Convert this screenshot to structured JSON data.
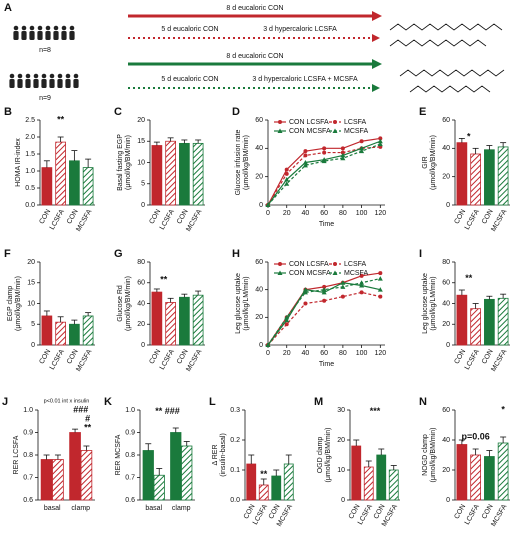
{
  "diagram": {
    "label": "A",
    "groups": [
      {
        "n": "n=8",
        "solid": "8 d eucaloric CON",
        "dotted": [
          "5 d eucaloric CON",
          "3 d hypercaloric LCSFA"
        ],
        "color": "#c1272d"
      },
      {
        "n": "n=9",
        "solid": "8 d eucaloric CON",
        "dotted": [
          "5 d eucaloric CON",
          "3 d hypercaloric LCSFA + MCSFA"
        ],
        "color": "#1a7a3c"
      }
    ]
  },
  "chart_data": [
    {
      "label": "B",
      "type": "bar",
      "y_label": [
        "HOMA IR-index"
      ],
      "categories": [
        "CON",
        "LCSFA",
        "CON",
        "MCSFA"
      ],
      "values": [
        1.1,
        1.85,
        1.3,
        1.1
      ],
      "errors": [
        0.2,
        0.15,
        0.3,
        0.25
      ],
      "colors": [
        "#c1272d",
        "#c1272d",
        "#1a7a3c",
        "#1a7a3c"
      ],
      "hatched": [
        false,
        true,
        false,
        true
      ],
      "ylim": [
        0,
        2.5
      ],
      "yticks": [
        {
          "value": 0,
          "label": "0.0"
        },
        0.5,
        {
          "value": 1,
          "label": "1.0"
        },
        1.5,
        {
          "value": 2,
          "label": "2.0"
        },
        2.5
      ],
      "annotations": [
        "**"
      ]
    },
    {
      "label": "C",
      "type": "bar",
      "y_label": [
        "Basal fasting EGP",
        "(μmol/kg/BM/min)"
      ],
      "categories": [
        "CON",
        "LCSFA",
        "CON",
        "MCSFA"
      ],
      "values": [
        14,
        15,
        14.5,
        14.5
      ],
      "errors": [
        0.8,
        0.8,
        0.8,
        0.8
      ],
      "colors": [
        "#c1272d",
        "#c1272d",
        "#1a7a3c",
        "#1a7a3c"
      ],
      "hatched": [
        false,
        true,
        false,
        true
      ],
      "ylim": [
        0,
        20
      ],
      "yticks": [
        0,
        5,
        10,
        15,
        20
      ],
      "annotations": []
    },
    {
      "label": "D",
      "type": "line",
      "y_label": [
        "Glucose infusion rate",
        "(μmol/kg/BM/min)"
      ],
      "x_label": "Time",
      "x": [
        0,
        20,
        40,
        60,
        80,
        100,
        120
      ],
      "xlim": [
        0,
        125
      ],
      "xticks": [
        0,
        20,
        40,
        60,
        80,
        100,
        120
      ],
      "ylim": [
        0,
        60
      ],
      "yticks": [
        0,
        20,
        40,
        60
      ],
      "legend": "top-left",
      "series": [
        {
          "name": "CON LCSFA",
          "color": "#c1272d",
          "dashed": false,
          "marker": "circle",
          "values": [
            0,
            25,
            38,
            40,
            40,
            45,
            47
          ]
        },
        {
          "name": "LCSFA",
          "color": "#c1272d",
          "dashed": true,
          "marker": "circle",
          "values": [
            0,
            22,
            35,
            37,
            37,
            40,
            41
          ]
        },
        {
          "name": "CON MCSFA",
          "color": "#1a7a3c",
          "dashed": false,
          "marker": "triangle",
          "values": [
            0,
            18,
            30,
            32,
            35,
            40,
            45
          ]
        },
        {
          "name": "MCSFA",
          "color": "#1a7a3c",
          "dashed": true,
          "marker": "triangle",
          "values": [
            0,
            15,
            28,
            31,
            33,
            38,
            43
          ]
        }
      ],
      "annotations": []
    },
    {
      "label": "E",
      "type": "bar",
      "y_label": [
        "GIR",
        "(μmol/kg/BM/min)"
      ],
      "categories": [
        "CON",
        "LCSFA",
        "CON",
        "MCSFA"
      ],
      "values": [
        44,
        36,
        39,
        41
      ],
      "errors": [
        3,
        4,
        3,
        3
      ],
      "colors": [
        "#c1272d",
        "#c1272d",
        "#1a7a3c",
        "#1a7a3c"
      ],
      "hatched": [
        false,
        true,
        false,
        true
      ],
      "ylim": [
        0,
        60
      ],
      "yticks": [
        0,
        20,
        40,
        60
      ],
      "annotations": [
        "*"
      ]
    },
    {
      "label": "F",
      "type": "bar",
      "y_label": [
        "EGP clamp",
        "(μmol/kg/BM/min)"
      ],
      "categories": [
        "CON",
        "LCSFA",
        "CON",
        "MCSFA"
      ],
      "values": [
        7,
        5.5,
        5,
        7
      ],
      "errors": [
        1.2,
        1.3,
        1,
        0.8
      ],
      "colors": [
        "#c1272d",
        "#c1272d",
        "#1a7a3c",
        "#1a7a3c"
      ],
      "hatched": [
        false,
        true,
        false,
        true
      ],
      "ylim": [
        0,
        20
      ],
      "yticks": [
        0,
        5,
        10,
        15,
        20
      ],
      "annotations": []
    },
    {
      "label": "G",
      "type": "bar",
      "y_label": [
        "Glucose Rd",
        "(μmol/kg/BM/min)"
      ],
      "categories": [
        "CON",
        "LCSFA",
        "CON",
        "MCSFA"
      ],
      "values": [
        51,
        41,
        46,
        48
      ],
      "errors": [
        3,
        4,
        3,
        4
      ],
      "colors": [
        "#c1272d",
        "#c1272d",
        "#1a7a3c",
        "#1a7a3c"
      ],
      "hatched": [
        false,
        true,
        false,
        true
      ],
      "ylim": [
        0,
        80
      ],
      "yticks": [
        0,
        20,
        40,
        60,
        80
      ],
      "annotations": [
        "**"
      ]
    },
    {
      "label": "H",
      "type": "line",
      "y_label": [
        "Leg glucose uptake",
        "(μmol/kg/LM/min)"
      ],
      "x_label": "Time",
      "x": [
        0,
        20,
        40,
        60,
        80,
        100,
        120
      ],
      "xlim": [
        0,
        125
      ],
      "xticks": [
        0,
        20,
        40,
        60,
        80,
        100,
        120
      ],
      "ylim": [
        0,
        60
      ],
      "yticks": [
        0,
        20,
        40,
        60
      ],
      "legend": "top-left",
      "series": [
        {
          "name": "CON LCSFA",
          "color": "#c1272d",
          "dashed": false,
          "marker": "circle",
          "values": [
            0,
            20,
            40,
            42,
            45,
            50,
            52
          ]
        },
        {
          "name": "LCSFA",
          "color": "#c1272d",
          "dashed": true,
          "marker": "circle",
          "values": [
            0,
            15,
            30,
            32,
            35,
            38,
            35
          ]
        },
        {
          "name": "CON MCSFA",
          "color": "#1a7a3c",
          "dashed": false,
          "marker": "triangle",
          "values": [
            0,
            18,
            40,
            38,
            45,
            43,
            40
          ]
        },
        {
          "name": "MCSFA",
          "color": "#1a7a3c",
          "dashed": true,
          "marker": "triangle",
          "values": [
            0,
            20,
            38,
            40,
            42,
            45,
            48
          ]
        }
      ],
      "annotations": []
    },
    {
      "label": "I",
      "type": "bar",
      "y_label": [
        "Leg glucose uptake",
        "(μmol/kg/LM/min)"
      ],
      "categories": [
        "CON",
        "LCSFA",
        "CON",
        "MCSFA"
      ],
      "values": [
        48,
        35,
        44,
        45
      ],
      "errors": [
        5,
        5,
        3,
        4
      ],
      "colors": [
        "#c1272d",
        "#c1272d",
        "#1a7a3c",
        "#1a7a3c"
      ],
      "hatched": [
        false,
        true,
        false,
        true
      ],
      "ylim": [
        0,
        80
      ],
      "yticks": [
        0,
        20,
        40,
        60,
        80
      ],
      "annotations": [
        "**"
      ]
    },
    {
      "label": "J",
      "type": "grouped",
      "y_label": [
        "RER LCSFA"
      ],
      "categories": [
        "basal",
        "clamp"
      ],
      "series": [
        {
          "color": "#c1272d",
          "hatched": false,
          "values": [
            0.78,
            0.9
          ],
          "errors": [
            0.02,
            0.015
          ]
        },
        {
          "color": "#c1272d",
          "hatched": true,
          "values": [
            0.78,
            0.82
          ],
          "errors": [
            0.02,
            0.02
          ]
        }
      ],
      "ylim": [
        0.6,
        1.0
      ],
      "yticks": [
        0.6,
        0.7,
        0.8,
        0.9,
        {
          "value": 1.0,
          "label": "1.0"
        }
      ],
      "annotations": [
        "p<0.01 int x insulin",
        "###",
        "#",
        "**"
      ]
    },
    {
      "label": "K",
      "type": "grouped",
      "y_label": [
        "RER MCSFA"
      ],
      "categories": [
        "basal",
        "clamp"
      ],
      "series": [
        {
          "color": "#1a7a3c",
          "hatched": false,
          "values": [
            0.82,
            0.9
          ],
          "errors": [
            0.03,
            0.02
          ]
        },
        {
          "color": "#1a7a3c",
          "hatched": true,
          "values": [
            0.71,
            0.84
          ],
          "errors": [
            0.03,
            0.02
          ]
        }
      ],
      "ylim": [
        0.6,
        1.0
      ],
      "yticks": [
        0.6,
        0.7,
        0.8,
        0.9,
        {
          "value": 1.0,
          "label": "1.0"
        }
      ],
      "annotations": [
        "** ###"
      ]
    },
    {
      "label": "L",
      "type": "bar",
      "y_label": [
        "Δ RER",
        "(insulin-basal)"
      ],
      "categories": [
        "CON",
        "LCSFA",
        "CON",
        "MCSFA"
      ],
      "values": [
        0.12,
        0.05,
        0.08,
        0.12
      ],
      "errors": [
        0.03,
        0.02,
        0.02,
        0.03
      ],
      "colors": [
        "#c1272d",
        "#c1272d",
        "#1a7a3c",
        "#1a7a3c"
      ],
      "hatched": [
        false,
        true,
        false,
        true
      ],
      "ylim": [
        0,
        0.3
      ],
      "yticks": [
        {
          "value": 0,
          "label": "0.0"
        },
        0.1,
        0.2,
        0.3
      ],
      "annotations": [
        "**"
      ]
    },
    {
      "label": "M",
      "type": "bar",
      "y_label": [
        "OGD clamp",
        "(μmol/kg/BM/min)"
      ],
      "categories": [
        "CON",
        "LCSFA",
        "CON",
        "MCSFA"
      ],
      "values": [
        18,
        11,
        15,
        10
      ],
      "errors": [
        2,
        2,
        2,
        1.5
      ],
      "colors": [
        "#c1272d",
        "#c1272d",
        "#1a7a3c",
        "#1a7a3c"
      ],
      "hatched": [
        false,
        true,
        false,
        true
      ],
      "ylim": [
        0,
        30
      ],
      "yticks": [
        0,
        10,
        20,
        30
      ],
      "annotations": [
        "***"
      ]
    },
    {
      "label": "N",
      "type": "bar",
      "y_label": [
        "NOGD clamp",
        "(μmol/kg/BM/min)"
      ],
      "categories": [
        "CON",
        "LCSFA",
        "CON",
        "MCSFA"
      ],
      "values": [
        37,
        30,
        29,
        38
      ],
      "errors": [
        3,
        4,
        4,
        4
      ],
      "colors": [
        "#c1272d",
        "#c1272d",
        "#1a7a3c",
        "#1a7a3c"
      ],
      "hatched": [
        false,
        true,
        false,
        true
      ],
      "ylim": [
        0,
        60
      ],
      "yticks": [
        0,
        20,
        40,
        60
      ],
      "annotations": [
        "p=0.06",
        "*"
      ]
    }
  ]
}
